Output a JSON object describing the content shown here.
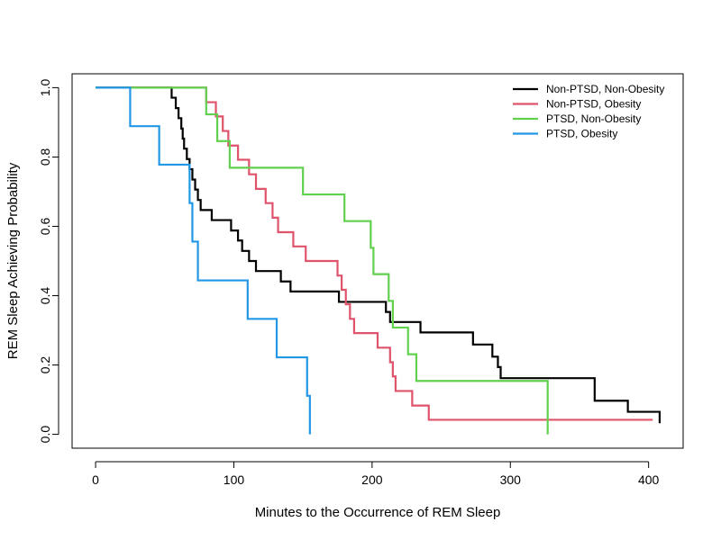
{
  "chart_data": {
    "type": "line",
    "step": true,
    "xlabel": "Minutes to the Occurrence of REM Sleep",
    "ylabel": "REM Sleep Achieving Probability",
    "xlim": [
      -17,
      425
    ],
    "ylim": [
      -0.04,
      1.04
    ],
    "xticks": [
      0,
      100,
      200,
      300,
      400
    ],
    "yticks": [
      0.0,
      0.2,
      0.4,
      0.6,
      0.8,
      1.0
    ],
    "ytick_labels": [
      "0.0",
      "0.2",
      "0.4",
      "0.6",
      "0.8",
      "1.0"
    ],
    "legend_position": "top-right",
    "series": [
      {
        "name": "Non-PTSD, Non-Obesity",
        "color": "#000000",
        "x": [
          0,
          52,
          55,
          58,
          60,
          62,
          63,
          64,
          66,
          68,
          70,
          72,
          74,
          76,
          77,
          84,
          98,
          103,
          106,
          111,
          116,
          134,
          141,
          176,
          210,
          213,
          235,
          273,
          287,
          291,
          293,
          335,
          361,
          385,
          408
        ],
        "y": [
          1.0,
          1.0,
          0.971,
          0.941,
          0.912,
          0.882,
          0.853,
          0.824,
          0.794,
          0.765,
          0.735,
          0.706,
          0.676,
          0.647,
          0.647,
          0.618,
          0.588,
          0.559,
          0.529,
          0.5,
          0.471,
          0.441,
          0.412,
          0.382,
          0.353,
          0.324,
          0.294,
          0.259,
          0.224,
          0.194,
          0.162,
          0.162,
          0.097,
          0.065,
          0.032
        ]
      },
      {
        "name": "Non-PTSD, Obesity",
        "color": "#DF536B",
        "x": [
          0,
          70,
          80,
          87,
          92,
          96,
          103,
          111,
          116,
          123,
          128,
          132,
          137,
          143,
          152,
          175,
          178,
          181,
          182,
          184,
          187,
          204,
          213,
          215,
          217,
          219,
          229,
          241,
          248,
          292,
          320,
          335,
          403
        ],
        "y": [
          1.0,
          1.0,
          0.958,
          0.917,
          0.875,
          0.833,
          0.792,
          0.75,
          0.708,
          0.667,
          0.625,
          0.583,
          0.583,
          0.542,
          0.5,
          0.458,
          0.417,
          0.375,
          0.375,
          0.333,
          0.292,
          0.25,
          0.208,
          0.167,
          0.125,
          0.125,
          0.083,
          0.042,
          0.042,
          0.042,
          0.042,
          0.042,
          0.042
        ]
      },
      {
        "name": "PTSD, Non-Obesity",
        "color": "#61D04F",
        "x": [
          0,
          52,
          80,
          88,
          97,
          150,
          180,
          199,
          201,
          212,
          215,
          226,
          232,
          242,
          261,
          326,
          327
        ],
        "y": [
          1.0,
          1.0,
          0.923,
          0.846,
          0.769,
          0.692,
          0.615,
          0.538,
          0.462,
          0.385,
          0.308,
          0.231,
          0.154,
          0.154,
          0.154,
          0.154,
          0.0
        ]
      },
      {
        "name": "PTSD, Obesity",
        "color": "#2297E6",
        "x": [
          0,
          25,
          46,
          68,
          70,
          74,
          110,
          131,
          153,
          155
        ],
        "y": [
          1.0,
          0.889,
          0.778,
          0.667,
          0.556,
          0.444,
          0.333,
          0.222,
          0.111,
          0.0
        ]
      }
    ]
  }
}
